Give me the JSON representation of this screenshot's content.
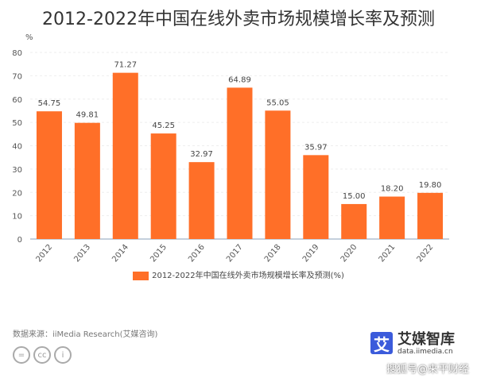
{
  "chart_data": {
    "type": "bar",
    "title": "2012-2022年中国在线外卖市场规模增长率及预测",
    "ylabel": "%",
    "xlabel": "",
    "categories": [
      "2012",
      "2013",
      "2014",
      "2015",
      "2016",
      "2017",
      "2018",
      "2019",
      "2020",
      "2021",
      "2022"
    ],
    "values": [
      54.75,
      49.81,
      71.27,
      45.25,
      32.97,
      64.89,
      55.05,
      35.97,
      15.0,
      18.2,
      19.8
    ],
    "value_labels": [
      "54.75",
      "49.81",
      "71.27",
      "45.25",
      "32.97",
      "64.89",
      "55.05",
      "35.97",
      "15.00",
      "18.20",
      "19.80"
    ],
    "ylim": [
      0,
      80
    ],
    "yticks": [
      0,
      10,
      20,
      30,
      40,
      50,
      60,
      70,
      80
    ],
    "grid": true,
    "legend_position": "bottom",
    "series": [
      {
        "name": "2012-2022年中国在线外卖市场规模增长率及预测(%)",
        "color": "#ff6f28"
      }
    ]
  },
  "footer": {
    "source": "数据来源：iiMedia Research(艾媒咨询)",
    "logo_mark": "艾",
    "logo_name": "艾媒智库",
    "logo_url": "data.iimedia.cn",
    "watermark": "搜狐号@来平财经",
    "license_icons": [
      "=",
      "cc",
      "i"
    ]
  }
}
